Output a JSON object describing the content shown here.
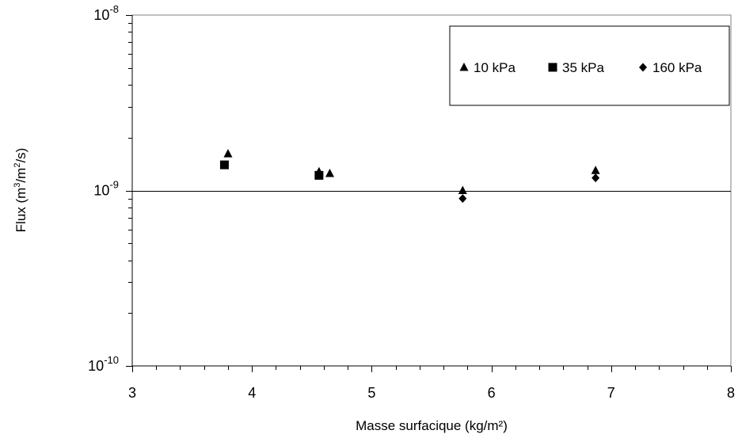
{
  "chart_data": {
    "type": "scatter",
    "title": "",
    "xlabel": "Masse surfacique (kg/m²)",
    "ylabel": {
      "prefix": "Flux (m",
      "sup1": "3",
      "mid": "/m",
      "sup2": "2",
      "suffix": "/s)"
    },
    "xlim": [
      3,
      8
    ],
    "ylim": [
      1e-10,
      1e-08
    ],
    "yscale": "log",
    "x_ticks": [
      "3",
      "4",
      "5",
      "6",
      "7",
      "8"
    ],
    "y_ticks": [
      {
        "base": "10",
        "exp": "-8",
        "value": 1e-08
      },
      {
        "base": "10",
        "exp": "-9",
        "value": 1e-09
      },
      {
        "base": "10",
        "exp": "-10",
        "value": 1e-10
      }
    ],
    "grid": "horizontal line at 1e-9 only",
    "legend_position": "top-right",
    "series": [
      {
        "name": "10 kPa",
        "marker": "triangle",
        "points": [
          [
            3.8,
            1.62e-09
          ],
          [
            4.56,
            1.28e-09
          ],
          [
            4.65,
            1.25e-09
          ],
          [
            5.76,
            1e-09
          ],
          [
            6.87,
            1.3e-09
          ]
        ]
      },
      {
        "name": "35 kPa",
        "marker": "square",
        "points": [
          [
            3.77,
            1.4e-09
          ],
          [
            4.56,
            1.22e-09
          ]
        ]
      },
      {
        "name": "160 kPa",
        "marker": "diamond",
        "points": [
          [
            5.76,
            9e-10
          ],
          [
            6.87,
            1.18e-09
          ]
        ]
      }
    ]
  }
}
